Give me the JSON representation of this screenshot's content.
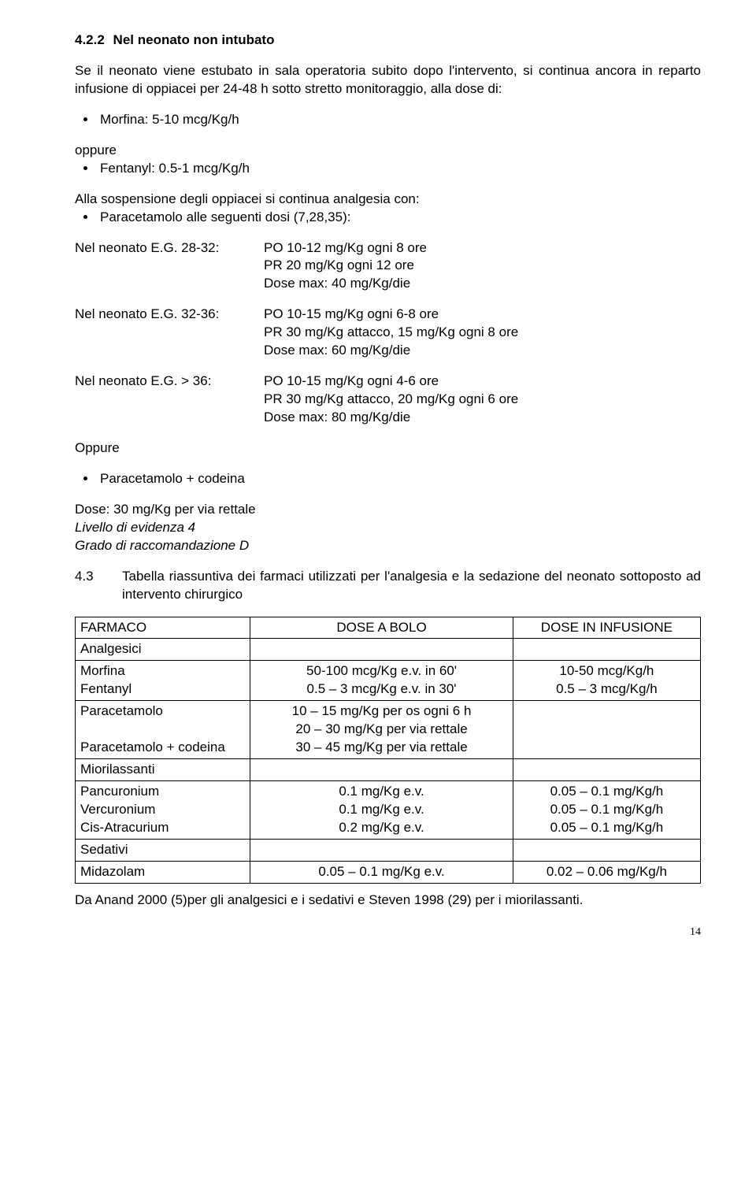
{
  "sec422": {
    "num": "4.2.2",
    "title": "Nel neonato non intubato",
    "intro": "Se il neonato viene estubato in sala operatoria subito dopo l'intervento, si continua ancora in reparto infusione di oppiacei per 24-48 h sotto stretto monitoraggio, alla dose di:",
    "opioids_pre": [
      "Morfina: 5-10 mcg/Kg/h"
    ],
    "oppure": "oppure",
    "opioids_post": [
      "Fentanyl: 0.5-1 mcg/Kg/h"
    ],
    "suspension_lead": "Alla sospensione degli oppiacei si continua analgesia con:",
    "paracetamolo": [
      "Paracetamolo alle seguenti dosi (7,28,35):"
    ],
    "dose_rows": [
      {
        "label": "Nel neonato E.G. 28-32:",
        "lines": [
          "PO 10-12 mg/Kg ogni 8 ore",
          "PR 20 mg/Kg ogni 12  ore",
          "Dose max: 40 mg/Kg/die"
        ]
      },
      {
        "label": "Nel neonato E.G. 32-36:",
        "lines": [
          "PO 10-15 mg/Kg ogni 6-8 ore",
          "PR 30 mg/Kg attacco, 15 mg/Kg ogni 8 ore",
          "Dose max: 60 mg/Kg/die"
        ]
      },
      {
        "label": "Nel neonato E.G. > 36:",
        "lines": [
          "PO 10-15 mg/Kg ogni 4-6 ore",
          "PR 30 mg/Kg attacco, 20 mg/Kg ogni 6 ore",
          "Dose max: 80 mg/Kg/die"
        ]
      }
    ],
    "oppure2": "Oppure",
    "codeina_bullet": [
      "Paracetamolo + codeina"
    ],
    "codeina_dose": "Dose: 30 mg/Kg per via rettale",
    "evidence": "Livello di evidenza 4",
    "grade": "Grado di raccomandazione D"
  },
  "sec43": {
    "num": "4.3",
    "title": "Tabella riassuntiva dei farmaci utilizzati per l'analgesia e la sedazione del neonato sottoposto ad intervento chirurgico"
  },
  "table": {
    "headers": [
      "FARMACO",
      "DOSE A BOLO",
      "DOSE IN INFUSIONE"
    ],
    "col_widths": [
      "28%",
      "42%",
      "30%"
    ],
    "rows": [
      {
        "c0": "Analgesici",
        "c1": "",
        "c2": ""
      },
      {
        "c0": "Morfina\nFentanyl",
        "c1": "50-100  mcg/Kg e.v. in 60'\n0.5 – 3 mcg/Kg e.v. in 30'",
        "c1_align": "center",
        "c2": "10-50 mcg/Kg/h\n0.5 – 3 mcg/Kg/h",
        "c2_align": "center"
      },
      {
        "c0": "Paracetamolo\n\nParacetamolo + codeina",
        "c1": "10 – 15 mg/Kg per os ogni 6 h\n20 – 30 mg/Kg per via rettale\n30 – 45 mg/Kg per via rettale",
        "c1_align": "center",
        "c2": ""
      },
      {
        "c0": "Miorilassanti",
        "c1": "",
        "c2": ""
      },
      {
        "c0": "Pancuronium\nVercuronium\nCis-Atracurium",
        "c1": "0.1 mg/Kg e.v.\n0.1 mg/Kg e.v.\n0.2 mg/Kg e.v.",
        "c1_align": "center",
        "c2": "0.05 – 0.1 mg/Kg/h\n0.05 – 0.1 mg/Kg/h\n0.05 – 0.1 mg/Kg/h",
        "c2_align": "center"
      },
      {
        "c0": "Sedativi",
        "c1": "",
        "c2": ""
      },
      {
        "c0": "Midazolam",
        "c1": "0.05 – 0.1 mg/Kg e.v.",
        "c1_align": "center",
        "c2": "0.02 – 0.06 mg/Kg/h",
        "c2_align": "center"
      }
    ],
    "footnote": "Da Anand 2000 (5)per gli analgesici e i sedativi e Steven 1998 (29) per i miorilassanti."
  },
  "page_number": "14"
}
